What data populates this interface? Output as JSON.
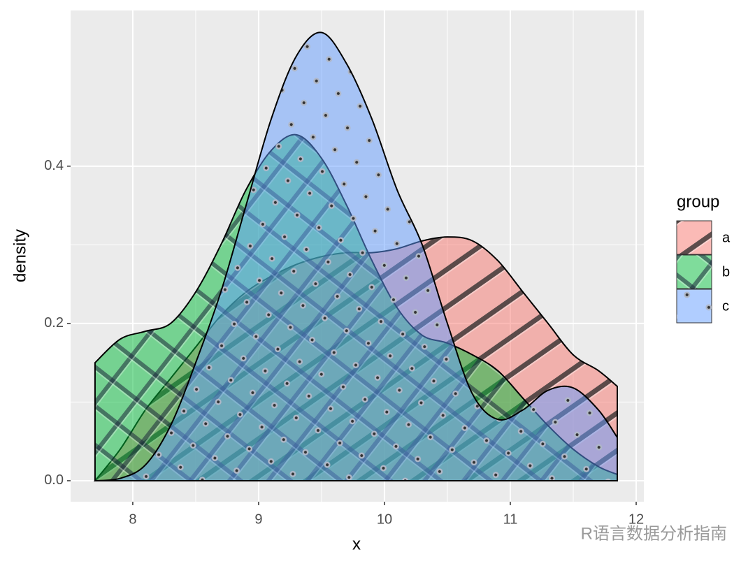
{
  "chart_data": {
    "type": "density",
    "x_label": "x",
    "y_label": "density",
    "x": [
      7.7,
      7.9,
      8.1,
      8.3,
      8.5,
      8.7,
      8.9,
      9.1,
      9.3,
      9.5,
      9.7,
      9.9,
      10.1,
      10.3,
      10.5,
      10.7,
      10.9,
      11.1,
      11.3,
      11.5,
      11.7,
      11.85
    ],
    "series": [
      {
        "name": "a",
        "color": "#F8766D",
        "pattern": "stripe",
        "values": [
          0.0,
          0.04,
          0.09,
          0.13,
          0.17,
          0.21,
          0.24,
          0.26,
          0.275,
          0.285,
          0.29,
          0.29,
          0.295,
          0.305,
          0.31,
          0.305,
          0.28,
          0.24,
          0.2,
          0.16,
          0.14,
          0.12
        ]
      },
      {
        "name": "b",
        "color": "#00BA38",
        "pattern": "crosshatch",
        "values": [
          0.15,
          0.18,
          0.19,
          0.2,
          0.24,
          0.3,
          0.37,
          0.42,
          0.44,
          0.41,
          0.35,
          0.28,
          0.22,
          0.185,
          0.175,
          0.16,
          0.14,
          0.105,
          0.07,
          0.04,
          0.018,
          0.008
        ]
      },
      {
        "name": "c",
        "color": "#619CFF",
        "pattern": "circle",
        "values": [
          0.0,
          0.003,
          0.02,
          0.07,
          0.15,
          0.24,
          0.35,
          0.46,
          0.54,
          0.57,
          0.53,
          0.46,
          0.37,
          0.3,
          0.2,
          0.11,
          0.078,
          0.09,
          0.115,
          0.118,
          0.09,
          0.055
        ]
      }
    ],
    "xlim": [
      7.506,
      12.061
    ],
    "ylim": [
      -0.0267,
      0.598
    ],
    "xticks": [
      8,
      9,
      10,
      11,
      12
    ],
    "yticks": [
      {
        "value": 0,
        "label": "0.0"
      },
      0.2,
      0.4
    ],
    "grid": true,
    "legend_title": "group",
    "legend_position": "right"
  },
  "watermark": "R语言数据分析指南"
}
